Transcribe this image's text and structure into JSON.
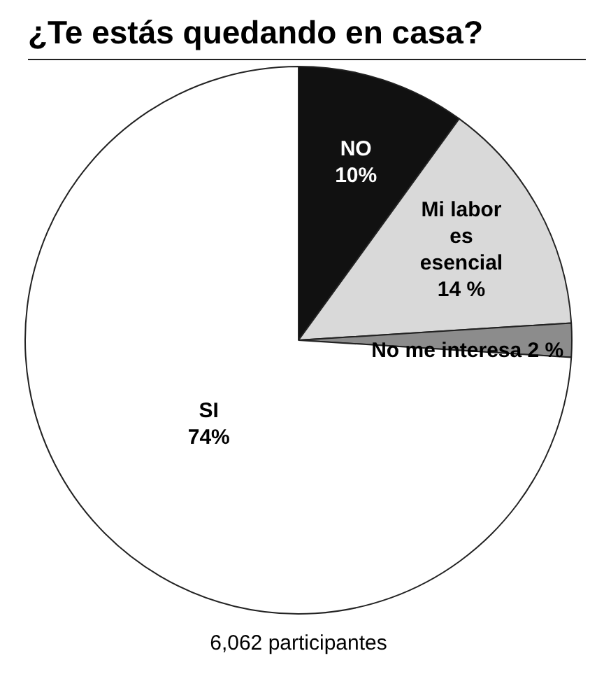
{
  "chart_data": {
    "type": "pie",
    "title": "¿Te estás quedando en casa?",
    "categories": [
      "NO",
      "Mi labor es esencial",
      "No me interesa",
      "SI"
    ],
    "values": [
      10,
      14,
      2,
      74
    ],
    "colors": [
      "#111111",
      "#d9d9d9",
      "#8c8c8c",
      "#ffffff"
    ],
    "value_labels": [
      "10%",
      "14 %",
      "2 %",
      "74%"
    ],
    "annotations": [
      "6,062 participantes"
    ],
    "legend": false
  }
}
